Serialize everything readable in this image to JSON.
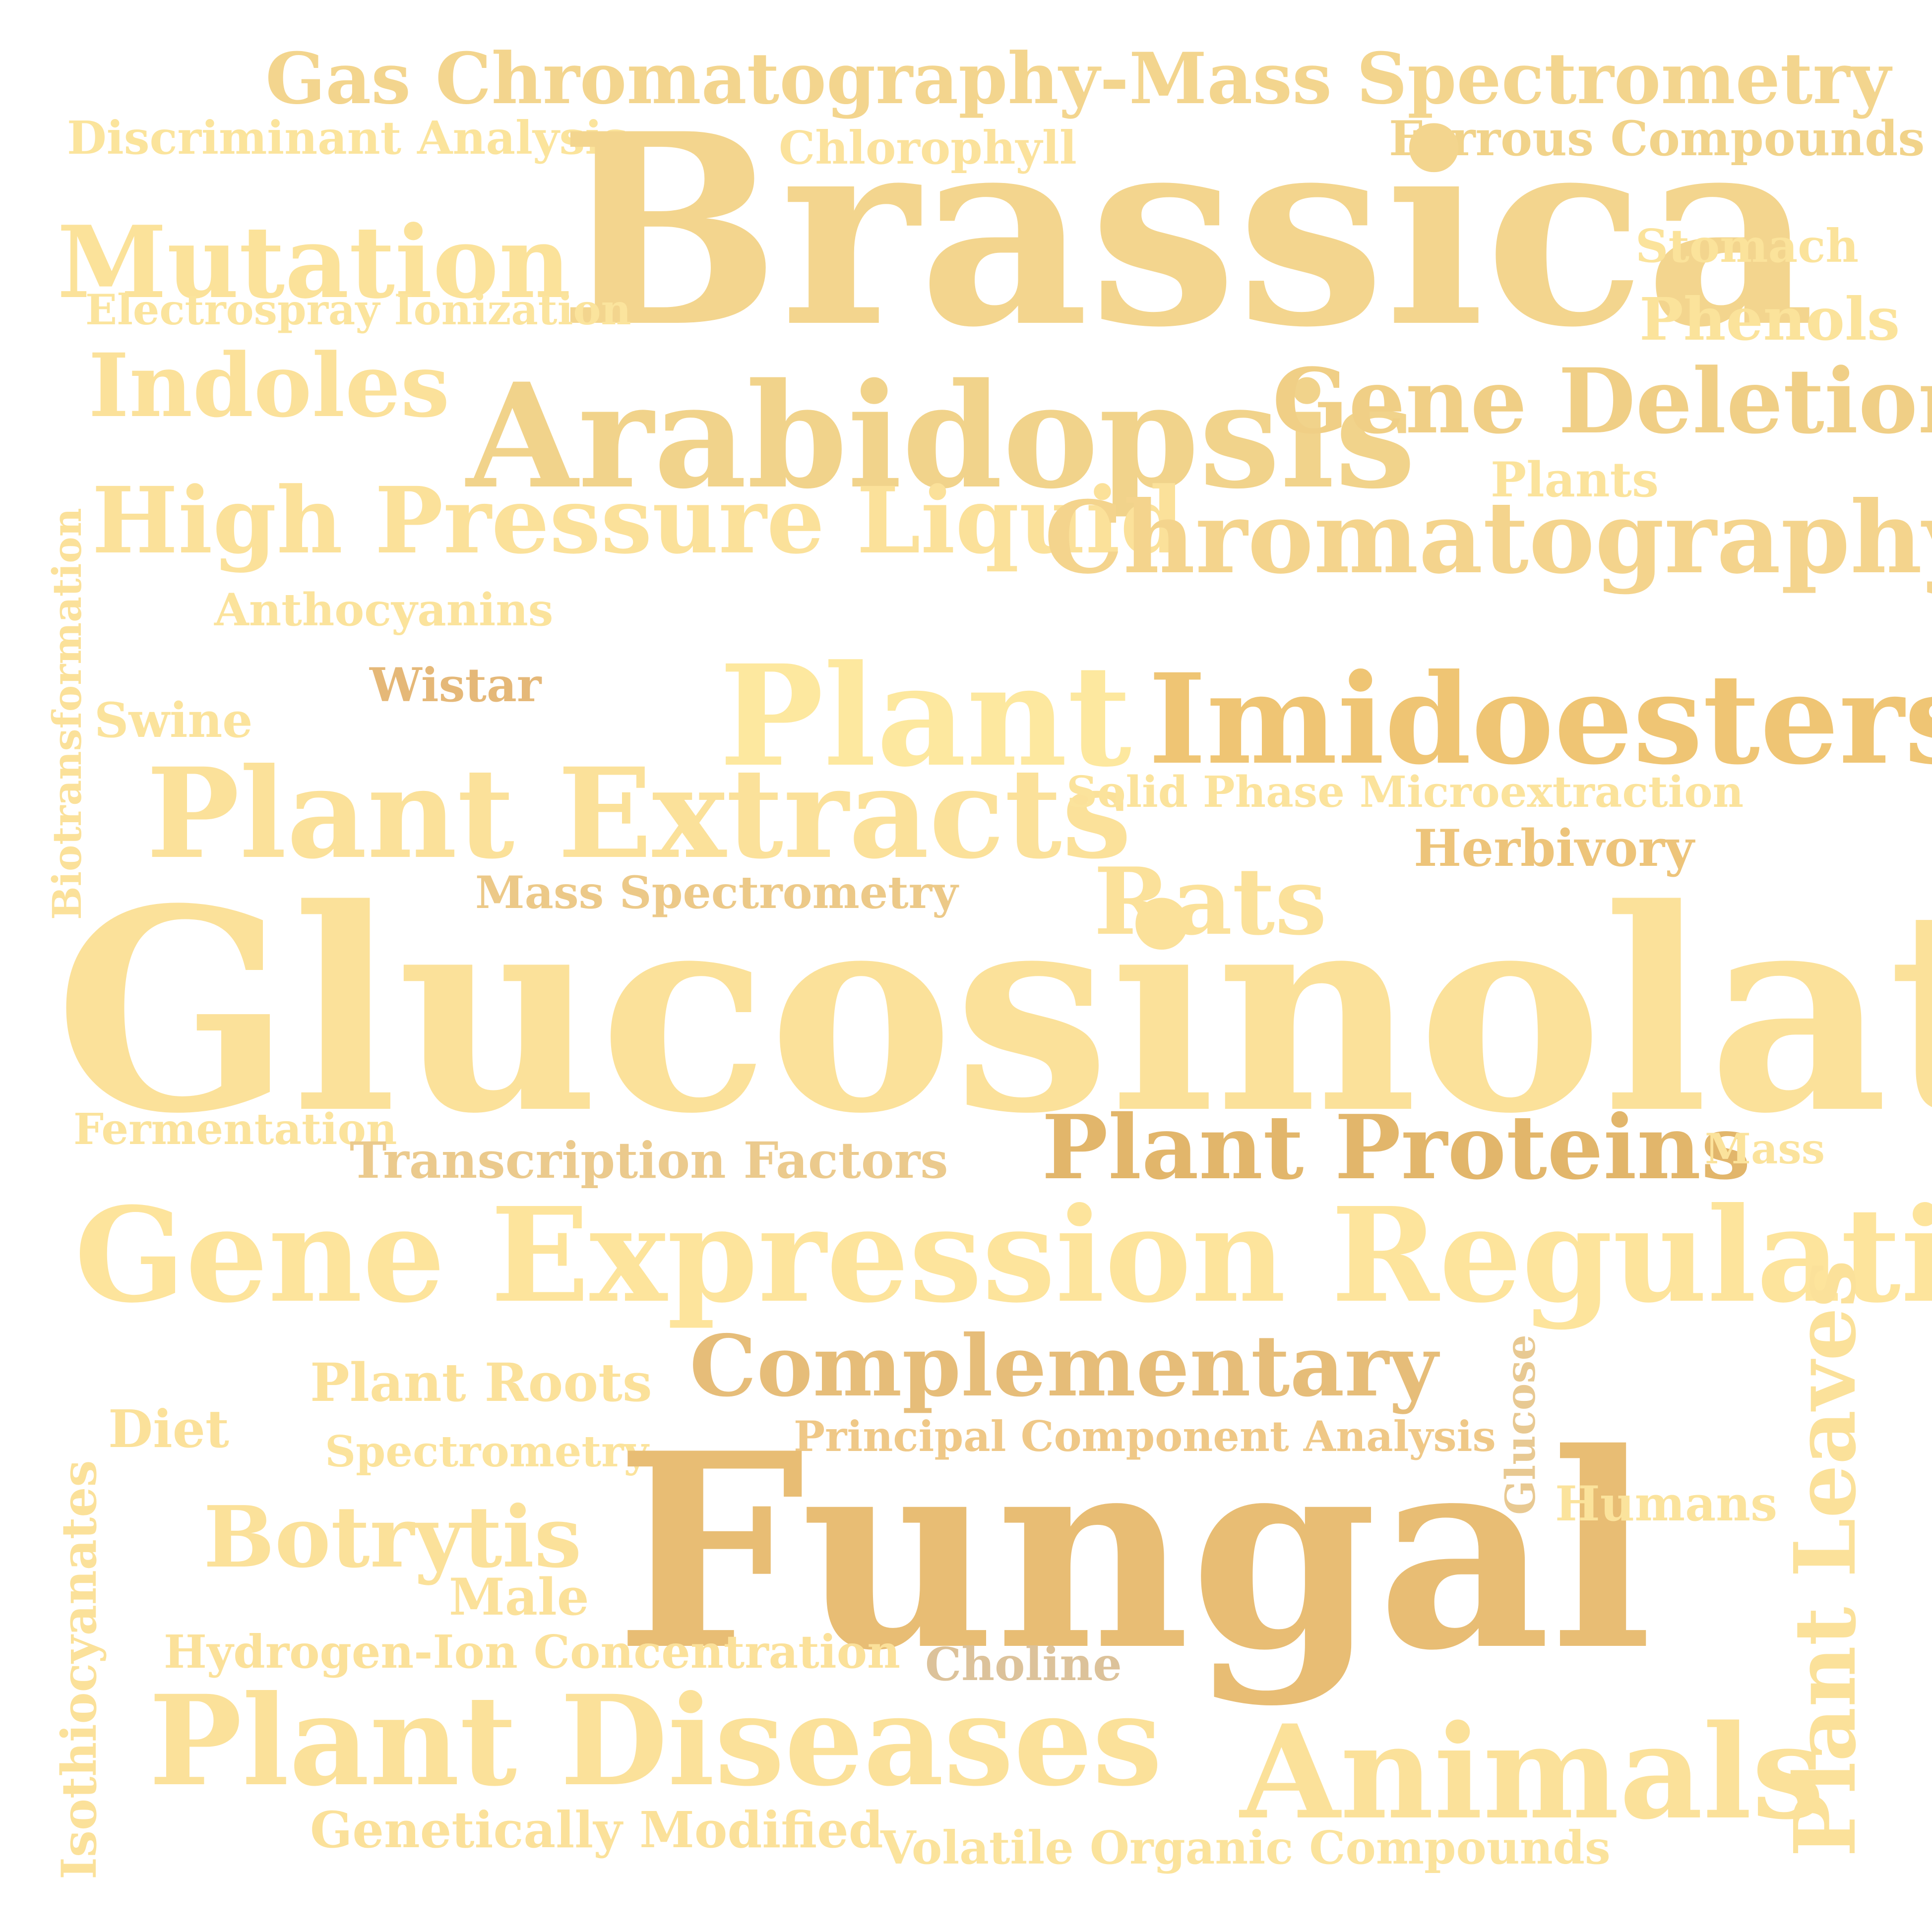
{
  "word_cloud": {
    "words": [
      {
        "text": "Gas Chromatography-Mass Spectrometry",
        "color": "#f3d58e",
        "orientation": "horizontal"
      },
      {
        "text": "Discriminant Analysis",
        "color": "#fbe49c",
        "orientation": "horizontal"
      },
      {
        "text": "Chlorophyll",
        "color": "#fbe29c",
        "orientation": "horizontal"
      },
      {
        "text": "Ferrous Compounds",
        "color": "#f1d38a",
        "orientation": "horizontal"
      },
      {
        "text": "Brassica",
        "color": "#f3d58e",
        "orientation": "horizontal"
      },
      {
        "text": "Mutation",
        "color": "#fbe29a",
        "orientation": "horizontal"
      },
      {
        "text": "Electrospray Ionization",
        "color": "#fbe49d",
        "orientation": "horizontal"
      },
      {
        "text": "Stomach",
        "color": "#fbe39b",
        "orientation": "horizontal"
      },
      {
        "text": "Phenols",
        "color": "#fbe39b",
        "orientation": "horizontal"
      },
      {
        "text": "Indoles",
        "color": "#fbe19a",
        "orientation": "horizontal"
      },
      {
        "text": "Arabidopsis",
        "color": "#f1d38b",
        "orientation": "horizontal"
      },
      {
        "text": "Gene Deletion",
        "color": "#f0cf86",
        "orientation": "horizontal"
      },
      {
        "text": "Plants",
        "color": "#fbe39c",
        "orientation": "horizontal"
      },
      {
        "text": "High Pressure Liquid",
        "color": "#fbe19a",
        "orientation": "horizontal"
      },
      {
        "text": "Chromatography",
        "color": "#f4d48d",
        "orientation": "horizontal"
      },
      {
        "text": "Anthocyanins",
        "color": "#fbe39c",
        "orientation": "horizontal"
      },
      {
        "text": "Biotransformation",
        "color": "#fbe19a",
        "orientation": "vertical"
      },
      {
        "text": "Wistar",
        "color": "#e5b878",
        "orientation": "horizontal"
      },
      {
        "text": "Swine",
        "color": "#fbe39c",
        "orientation": "horizontal"
      },
      {
        "text": "Plant",
        "color": "#fde89f",
        "orientation": "horizontal"
      },
      {
        "text": "Imidoesters",
        "color": "#efc574",
        "orientation": "horizontal"
      },
      {
        "text": "Plant Extracts",
        "color": "#fbe19a",
        "orientation": "horizontal"
      },
      {
        "text": "Solid Phase Microextraction",
        "color": "#fbe39c",
        "orientation": "horizontal"
      },
      {
        "text": "Herbivory",
        "color": "#edc47a",
        "orientation": "horizontal"
      },
      {
        "text": "Mass Spectrometry",
        "color": "#ecc988",
        "orientation": "horizontal"
      },
      {
        "text": "Rats",
        "color": "#fbe19a",
        "orientation": "horizontal"
      },
      {
        "text": "Glucosinolates",
        "color": "#fbe19a",
        "orientation": "horizontal"
      },
      {
        "text": "Fermentation",
        "color": "#fbe39c",
        "orientation": "horizontal"
      },
      {
        "text": "Transcription Factors",
        "color": "#ebca8d",
        "orientation": "horizontal"
      },
      {
        "text": "Plant Proteins",
        "color": "#e2b66b",
        "orientation": "horizontal"
      },
      {
        "text": "Mass",
        "color": "#fbe39c",
        "orientation": "horizontal"
      },
      {
        "text": "Gene Expression Regulation",
        "color": "#fde49c",
        "orientation": "horizontal"
      },
      {
        "text": "Complementary",
        "color": "#e6bd79",
        "orientation": "horizontal"
      },
      {
        "text": "Plant Roots",
        "color": "#fbe19a",
        "orientation": "horizontal"
      },
      {
        "text": "Diet",
        "color": "#fbe19a",
        "orientation": "horizontal"
      },
      {
        "text": "Spectrometry",
        "color": "#fbe39c",
        "orientation": "horizontal"
      },
      {
        "text": "Principal Component Analysis",
        "color": "#efc887",
        "orientation": "horizontal"
      },
      {
        "text": "Glucose",
        "color": "#e8c992",
        "orientation": "vertical"
      },
      {
        "text": "Fungal",
        "color": "#e8bd74",
        "orientation": "horizontal"
      },
      {
        "text": "Humans",
        "color": "#fbe39c",
        "orientation": "horizontal"
      },
      {
        "text": "Plant Leaves",
        "color": "#fbe19a",
        "orientation": "vertical"
      },
      {
        "text": "Botrytis",
        "color": "#fbe19a",
        "orientation": "horizontal"
      },
      {
        "text": "Male",
        "color": "#fbe19a",
        "orientation": "horizontal"
      },
      {
        "text": "Isothiocyanates",
        "color": "#fbe19a",
        "orientation": "vertical"
      },
      {
        "text": "Hydrogen-Ion Concentration",
        "color": "#fbe19a",
        "orientation": "horizontal"
      },
      {
        "text": "Choline",
        "color": "#dcc29a",
        "orientation": "horizontal"
      },
      {
        "text": "Plant Diseases",
        "color": "#fbe19a",
        "orientation": "horizontal"
      },
      {
        "text": "Animals",
        "color": "#fbe19a",
        "orientation": "horizontal"
      },
      {
        "text": "Genetically Modified",
        "color": "#fbe19a",
        "orientation": "horizontal"
      },
      {
        "text": "Volatile Organic Compounds",
        "color": "#fbe39c",
        "orientation": "horizontal"
      }
    ]
  }
}
